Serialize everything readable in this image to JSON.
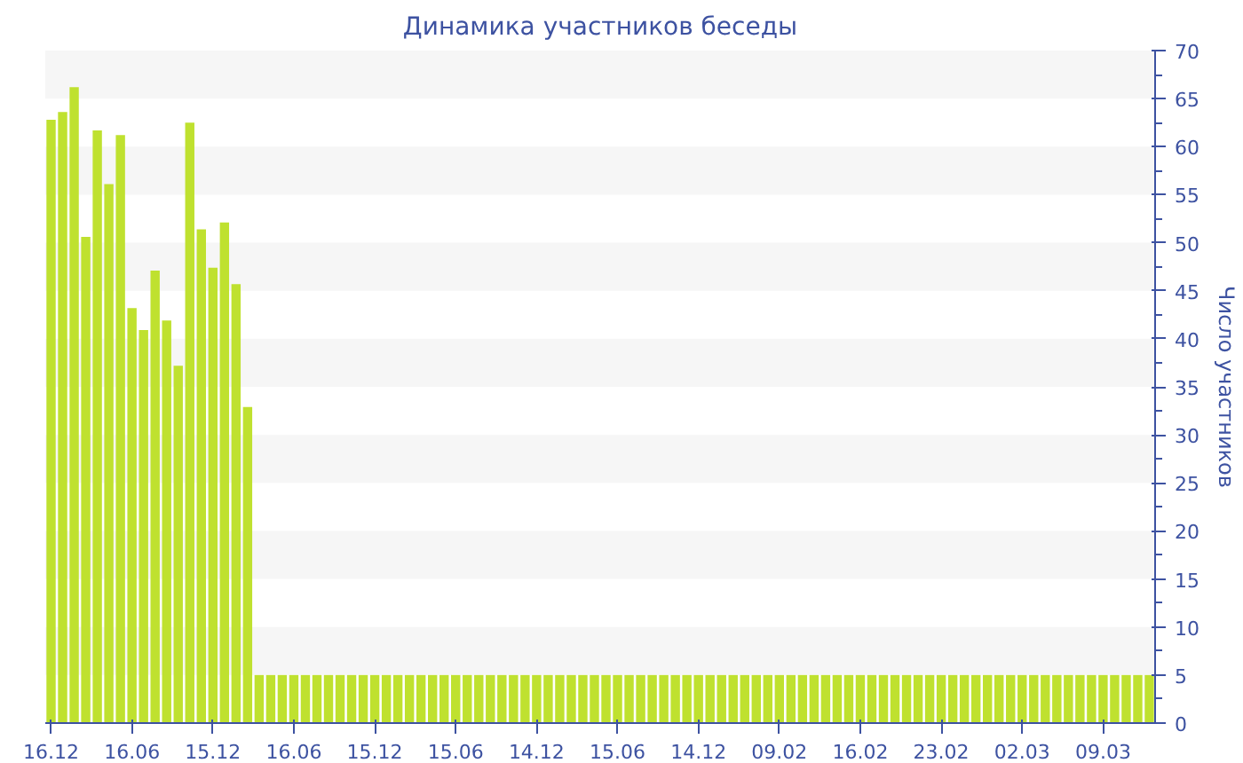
{
  "chart_data": {
    "type": "bar",
    "title": "Динамика участников беседы",
    "ylabel": "Число участников",
    "categories": [
      "16.12",
      null,
      null,
      null,
      null,
      null,
      null,
      "16.06",
      null,
      null,
      null,
      null,
      null,
      null,
      "15.12",
      null,
      null,
      null,
      null,
      null,
      null,
      "16.06",
      null,
      null,
      null,
      null,
      null,
      null,
      "15.12",
      null,
      null,
      null,
      null,
      null,
      null,
      "15.06",
      null,
      null,
      null,
      null,
      null,
      null,
      "14.12",
      null,
      null,
      null,
      null,
      null,
      null,
      "15.06",
      null,
      null,
      null,
      null,
      null,
      null,
      "14.12",
      null,
      null,
      null,
      null,
      null,
      null,
      "09.02",
      null,
      null,
      null,
      null,
      null,
      null,
      "16.02",
      null,
      null,
      null,
      null,
      null,
      null,
      "23.02",
      null,
      null,
      null,
      null,
      null,
      null,
      "02.03",
      null,
      null,
      null,
      null,
      null,
      null,
      "09.03",
      null,
      null,
      null,
      null
    ],
    "values": [
      62.8,
      63.6,
      66.2,
      50.6,
      61.7,
      56.1,
      61.2,
      43.2,
      40.9,
      47.1,
      41.9,
      37.2,
      62.5,
      51.4,
      47.4,
      52.1,
      45.7,
      32.9,
      5,
      5,
      5,
      5,
      5,
      5,
      5,
      5,
      5,
      5,
      5,
      5,
      5,
      5,
      5,
      5,
      5,
      5,
      5,
      5,
      5,
      5,
      5,
      5,
      5,
      5,
      5,
      5,
      5,
      5,
      5,
      5,
      5,
      5,
      5,
      5,
      5,
      5,
      5,
      5,
      5,
      5,
      5,
      5,
      5,
      5,
      5,
      5,
      5,
      5,
      5,
      5,
      5,
      5,
      5,
      5,
      5,
      5,
      5,
      5,
      5,
      5,
      5,
      5,
      5,
      5,
      5,
      5,
      5,
      5,
      5,
      5,
      5,
      5,
      5,
      5,
      5,
      5
    ],
    "color": "#bfe12f",
    "ylim": [
      0,
      70
    ],
    "yticks": [
      0,
      5,
      10,
      15,
      20,
      25,
      30,
      35,
      40,
      45,
      50,
      55,
      60,
      65,
      70
    ]
  }
}
